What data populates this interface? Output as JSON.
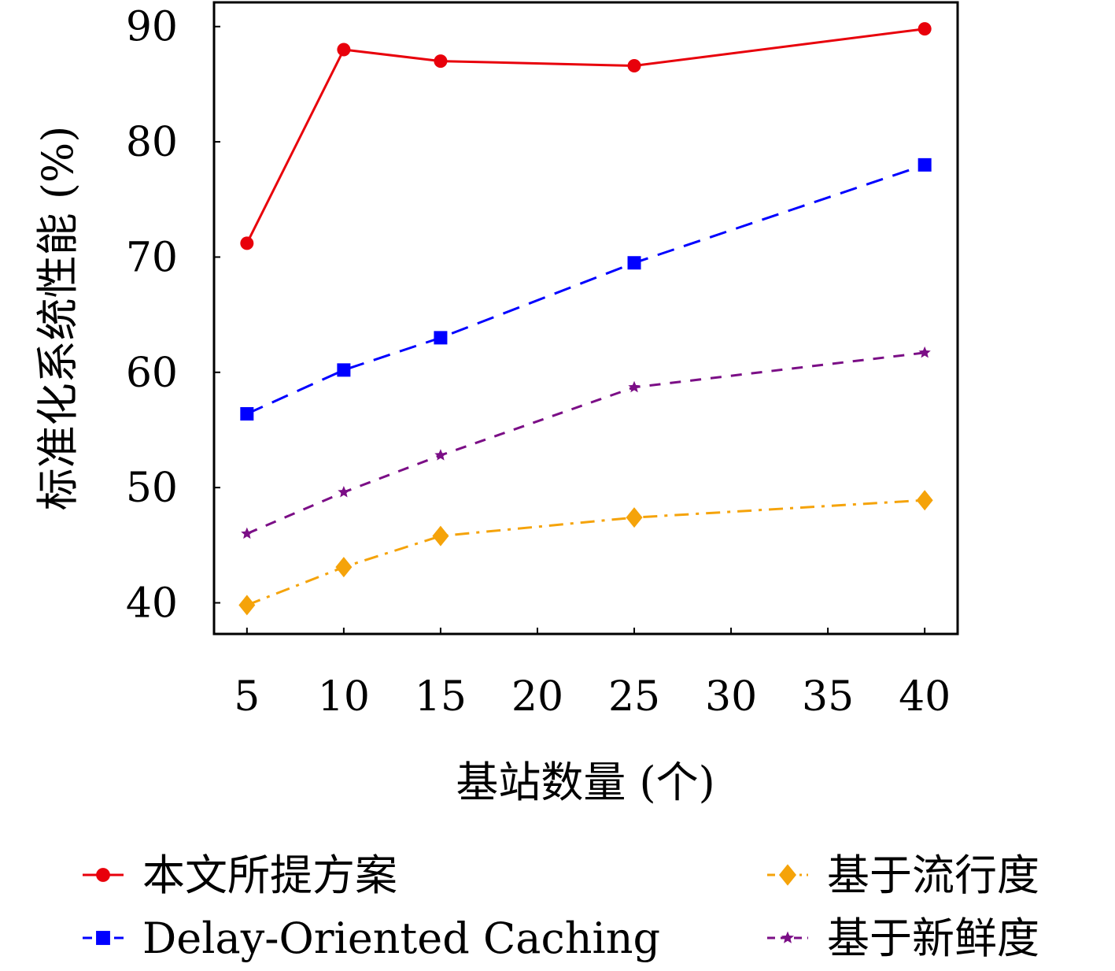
{
  "chart_data": {
    "type": "line",
    "x": [
      5,
      10,
      15,
      25,
      40
    ],
    "xlabel": "基站数量 (个)",
    "ylabel": "标准化系统性能 (%)",
    "xlim": [
      3.3,
      41.7
    ],
    "ylim": [
      37.3,
      92.1
    ],
    "xticks": [
      5,
      10,
      15,
      20,
      25,
      30,
      35,
      40
    ],
    "yticks": [
      40,
      50,
      60,
      70,
      80,
      90
    ],
    "grid": false,
    "legend_position": "bottom",
    "series": [
      {
        "name": "本文所提方案",
        "values": [
          71.2,
          88.0,
          87.0,
          86.6,
          89.8
        ],
        "color": "#e8000b",
        "dash": "solid",
        "marker": "circle"
      },
      {
        "name": "Delay-Oriented Caching",
        "values": [
          56.4,
          60.2,
          63.0,
          69.5,
          78.0
        ],
        "color": "#0000ff",
        "dash": "dashed",
        "marker": "square"
      },
      {
        "name": "基于新鲜度",
        "values": [
          46.0,
          49.6,
          52.8,
          58.7,
          61.7
        ],
        "color": "#7b0e86",
        "dash": "densedash",
        "marker": "star"
      },
      {
        "name": "基于流行度",
        "values": [
          39.8,
          43.1,
          45.8,
          47.4,
          48.9
        ],
        "color": "#f5a30a",
        "dash": "dashdot",
        "marker": "diamond"
      }
    ]
  }
}
